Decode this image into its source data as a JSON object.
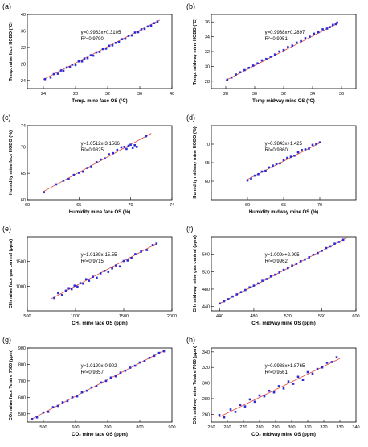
{
  "chart_data": [
    {
      "type": "scatter",
      "panel_label": "(a)",
      "xlabel": "Temp. mine face OS (°C)",
      "ylabel": "Temp. mine face HOBO (°C)",
      "xlim": [
        22,
        40
      ],
      "ylim": [
        22,
        40
      ],
      "xticks": [
        24,
        28,
        32,
        36,
        40
      ],
      "yticks": [
        24,
        28,
        32,
        36,
        40
      ],
      "equation": "y=0.9963x+0.3105",
      "r2": "R²=0.9790",
      "fit": {
        "slope": 0.9963,
        "intercept": 0.3105,
        "x_range": [
          24,
          38.5
        ]
      },
      "series": [
        {
          "name": "",
          "color": "#2b2bd6",
          "x": [
            24.2,
            24.9,
            25.3,
            25.8,
            26.2,
            26.5,
            26.9,
            27.3,
            27.6,
            28.0,
            28.4,
            28.8,
            29.1,
            29.5,
            29.9,
            30.2,
            30.6,
            31.0,
            31.4,
            31.8,
            32.2,
            32.6,
            33.0,
            33.4,
            33.8,
            34.2,
            34.6,
            35.0,
            35.4,
            35.8,
            36.2,
            36.6,
            37.0,
            37.4,
            37.8,
            38.2
          ],
          "y": [
            24.3,
            24.7,
            25.5,
            25.6,
            26.4,
            26.3,
            27.1,
            27.2,
            27.8,
            27.7,
            28.6,
            28.6,
            29.3,
            29.4,
            30.1,
            30.0,
            30.8,
            30.9,
            31.6,
            31.7,
            32.4,
            32.5,
            33.1,
            33.3,
            34.0,
            34.1,
            34.8,
            34.9,
            35.6,
            35.7,
            36.4,
            36.5,
            37.1,
            37.3,
            37.9,
            38.3
          ]
        }
      ]
    },
    {
      "type": "scatter",
      "panel_label": "(b)",
      "xlabel": "Temp midway mine OS (°C)",
      "ylabel": "Temp. midway mine HOBO (°C)",
      "xlim": [
        27,
        37
      ],
      "ylim": [
        27,
        37
      ],
      "xticks": [
        28,
        30,
        32,
        34,
        36
      ],
      "yticks": [
        28,
        30,
        32,
        34,
        36
      ],
      "equation": "y=0.9938x+0.2897",
      "r2": "R²=0.9951",
      "fit": {
        "slope": 0.9938,
        "intercept": 0.2897,
        "x_range": [
          28,
          35.8
        ]
      },
      "series": [
        {
          "name": "",
          "color": "#2b2bd6",
          "x": [
            28.1,
            28.4,
            28.7,
            29.0,
            29.3,
            29.6,
            29.9,
            30.2,
            30.5,
            30.8,
            31.1,
            31.4,
            31.7,
            32.0,
            32.3,
            32.6,
            32.9,
            33.2,
            33.5,
            33.8,
            34.1,
            34.4,
            34.7,
            35.0,
            35.2,
            35.4,
            35.6,
            35.7
          ],
          "y": [
            28.2,
            28.5,
            28.9,
            29.2,
            29.5,
            29.8,
            30.1,
            30.4,
            30.8,
            31.0,
            31.3,
            31.6,
            32.0,
            32.2,
            32.6,
            32.8,
            33.2,
            33.4,
            33.8,
            34.0,
            34.4,
            34.6,
            35.0,
            35.1,
            35.3,
            35.6,
            35.7,
            35.9
          ]
        }
      ]
    },
    {
      "type": "scatter",
      "panel_label": "(c)",
      "xlabel": "Humidity mine face OS (%)",
      "ylabel": "Humidity mine face HOBO (%)",
      "xlim": [
        60,
        74
      ],
      "ylim": [
        60,
        74
      ],
      "xticks": [
        60,
        65,
        70,
        74
      ],
      "yticks": [
        60,
        65,
        70,
        74
      ],
      "equation": "y=1.0512x-3.1566",
      "r2": "R²=0.9825",
      "fit": {
        "slope": 1.0512,
        "intercept": -3.1566,
        "x_range": [
          61.5,
          72
        ]
      },
      "series": [
        {
          "name": "",
          "color": "#2b2bd6",
          "x": [
            61.6,
            62.8,
            63.5,
            64.0,
            64.5,
            65.0,
            65.4,
            65.8,
            66.2,
            66.7,
            67.1,
            67.5,
            67.9,
            68.3,
            68.7,
            69.1,
            69.4,
            69.6,
            69.8,
            70.0,
            70.2,
            70.4,
            70.6,
            71.5
          ],
          "y": [
            61.4,
            62.9,
            63.6,
            63.9,
            64.7,
            65.1,
            65.3,
            66.0,
            66.3,
            67.1,
            67.6,
            67.8,
            68.6,
            68.8,
            69.4,
            69.9,
            70.0,
            69.6,
            70.2,
            70.4,
            69.8,
            70.3,
            70.0,
            72.0
          ]
        }
      ]
    },
    {
      "type": "scatter",
      "panel_label": "(d)",
      "xlabel": "Humidity midway mine OS (%)",
      "ylabel": "Humidity midway mine HOBO (%)",
      "xlim": [
        55,
        75
      ],
      "ylim": [
        55,
        75
      ],
      "xticks": [
        60,
        65,
        70
      ],
      "yticks": [
        60,
        65,
        70
      ],
      "equation": "y=0.9843x+1.425",
      "r2": "R²=0.9860",
      "fit": {
        "slope": 0.9843,
        "intercept": 1.425,
        "x_range": [
          59.8,
          70
        ]
      },
      "series": [
        {
          "name": "",
          "color": "#2b2bd6",
          "x": [
            60.0,
            60.5,
            61.0,
            61.5,
            62.0,
            62.5,
            63.0,
            63.5,
            64.0,
            64.5,
            65.0,
            65.5,
            66.0,
            66.5,
            67.0,
            67.5,
            68.0,
            68.5,
            69.0,
            69.5,
            70.0
          ],
          "y": [
            60.2,
            60.7,
            61.5,
            61.9,
            62.6,
            62.8,
            63.7,
            64.2,
            64.6,
            64.8,
            65.7,
            66.3,
            66.6,
            66.9,
            67.8,
            68.4,
            68.6,
            68.8,
            69.8,
            70.0,
            70.5
          ]
        }
      ]
    },
    {
      "type": "scatter",
      "panel_label": "(e)",
      "xlabel": "CH₄ mine face OS (ppm)",
      "ylabel": "CH₄ mine face gas central (ppm)",
      "xlim": [
        500,
        2000
      ],
      "ylim": [
        500,
        2000
      ],
      "xticks": [
        500,
        1000,
        1500,
        2000
      ],
      "yticks": [
        1000,
        1500
      ],
      "equation": "y=1.0189x-15.55",
      "r2": "R²=0.9715",
      "fit": {
        "slope": 1.0189,
        "intercept": -15.55,
        "x_range": [
          750,
          1850
        ]
      },
      "series": [
        {
          "name": "",
          "color": "#2b2bd6",
          "x": [
            780,
            820,
            860,
            900,
            930,
            960,
            990,
            1020,
            1050,
            1080,
            1110,
            1140,
            1180,
            1220,
            1260,
            1300,
            1340,
            1380,
            1420,
            1460,
            1500,
            1540,
            1580,
            1620,
            1680,
            1740,
            1800,
            1840
          ],
          "y": [
            760,
            860,
            820,
            910,
            960,
            940,
            1010,
            990,
            1060,
            1050,
            1140,
            1110,
            1190,
            1170,
            1260,
            1310,
            1290,
            1360,
            1420,
            1400,
            1510,
            1520,
            1570,
            1650,
            1700,
            1730,
            1830,
            1860
          ]
        }
      ]
    },
    {
      "type": "scatter",
      "panel_label": "(f)",
      "xlabel": "CH₄ midway mine OS (ppm)",
      "ylabel": "CH₄ midway mine gas central (ppm)",
      "xlim": [
        430,
        600
      ],
      "ylim": [
        430,
        600
      ],
      "xticks": [
        440,
        480,
        520,
        560,
        600
      ],
      "yticks": [
        440,
        480,
        520,
        560
      ],
      "equation": "y=1.009x+2.995",
      "r2": "R²=0.9962",
      "fit": {
        "slope": 1.009,
        "intercept": 2.995,
        "x_range": [
          438,
          590
        ]
      },
      "series": [
        {
          "name": "",
          "color": "#2b2bd6",
          "x": [
            440,
            445,
            450,
            455,
            460,
            465,
            470,
            475,
            480,
            485,
            490,
            495,
            500,
            505,
            510,
            515,
            520,
            525,
            530,
            535,
            540,
            545,
            550,
            555,
            560,
            565,
            570,
            575,
            580,
            585
          ],
          "y": [
            447,
            452,
            457,
            463,
            468,
            473,
            478,
            484,
            488,
            493,
            499,
            503,
            509,
            513,
            518,
            524,
            528,
            534,
            538,
            544,
            548,
            553,
            559,
            563,
            568,
            574,
            578,
            584,
            588,
            593
          ]
        }
      ]
    },
    {
      "type": "scatter",
      "panel_label": "(g)",
      "xlabel": "CO₂ mine face OS (ppm)",
      "ylabel": "CO₂ mine face Telaire 7000 (ppm)",
      "xlim": [
        450,
        900
      ],
      "ylim": [
        450,
        900
      ],
      "xticks": [
        500,
        600,
        700,
        800,
        900
      ],
      "yticks": [
        500,
        600,
        700,
        800,
        900
      ],
      "equation": "y=1.0120x-0.902",
      "r2": "R²=0.9857",
      "fit": {
        "slope": 1.012,
        "intercept": -0.902,
        "x_range": [
          455,
          880
        ]
      },
      "series": [
        {
          "name": "",
          "color": "#2b2bd6",
          "x": [
            465,
            480,
            500,
            515,
            530,
            545,
            560,
            575,
            590,
            605,
            620,
            635,
            650,
            665,
            680,
            695,
            710,
            725,
            740,
            755,
            770,
            785,
            800,
            815,
            830,
            845,
            860,
            875
          ],
          "y": [
            468,
            478,
            508,
            512,
            540,
            548,
            570,
            578,
            600,
            606,
            630,
            640,
            660,
            668,
            690,
            700,
            720,
            728,
            750,
            762,
            780,
            792,
            812,
            820,
            840,
            852,
            870,
            880
          ]
        }
      ]
    },
    {
      "type": "scatter",
      "panel_label": "(h)",
      "xlabel": "CO₂ midway mine OS (ppm)",
      "ylabel": "CO₂ midway mine Telaire 7000 (ppm)",
      "xlim": [
        250,
        340
      ],
      "ylim": [
        250,
        345
      ],
      "xticks": [
        250,
        260,
        270,
        280,
        290,
        300,
        310,
        320,
        330,
        340
      ],
      "yticks": [
        260,
        280,
        300,
        320,
        340
      ],
      "equation": "y=0.9988x+1.8765",
      "r2": "R²=0.9561",
      "fit": {
        "slope": 0.9988,
        "intercept": 1.8765,
        "x_range": [
          255,
          330
        ]
      },
      "series": [
        {
          "name": "",
          "color": "#2b2bd6",
          "x": [
            255,
            258,
            262,
            265,
            268,
            271,
            274,
            277,
            280,
            283,
            286,
            289,
            292,
            295,
            298,
            301,
            304,
            307,
            310,
            313,
            316,
            319,
            322,
            325,
            328
          ],
          "y": [
            259,
            256,
            266,
            263,
            272,
            270,
            279,
            276,
            284,
            283,
            290,
            288,
            296,
            293,
            302,
            299,
            308,
            304,
            314,
            312,
            318,
            320,
            326,
            327,
            333
          ]
        }
      ]
    }
  ]
}
